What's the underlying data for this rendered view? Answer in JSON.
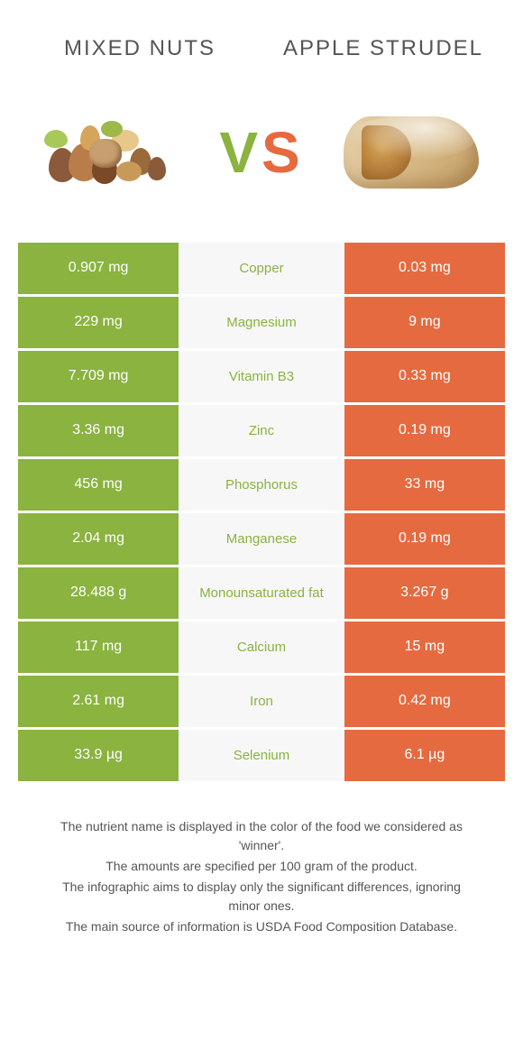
{
  "header": {
    "left_title": "Mixed nuts",
    "right_title": "Apple strudel",
    "vs_v": "V",
    "vs_s": "S"
  },
  "colors": {
    "left": "#8ab33f",
    "right": "#e66a3f",
    "mid_bg": "#f7f7f7",
    "text": "#555555"
  },
  "rows": [
    {
      "left": "0.907 mg",
      "label": "Copper",
      "right": "0.03 mg",
      "winner": "left"
    },
    {
      "left": "229 mg",
      "label": "Magnesium",
      "right": "9 mg",
      "winner": "left"
    },
    {
      "left": "7.709 mg",
      "label": "Vitamin B3",
      "right": "0.33 mg",
      "winner": "left"
    },
    {
      "left": "3.36 mg",
      "label": "Zinc",
      "right": "0.19 mg",
      "winner": "left"
    },
    {
      "left": "456 mg",
      "label": "Phosphorus",
      "right": "33 mg",
      "winner": "left"
    },
    {
      "left": "2.04 mg",
      "label": "Manganese",
      "right": "0.19 mg",
      "winner": "left"
    },
    {
      "left": "28.488 g",
      "label": "Monounsaturated fat",
      "right": "3.267 g",
      "winner": "left"
    },
    {
      "left": "117 mg",
      "label": "Calcium",
      "right": "15 mg",
      "winner": "left"
    },
    {
      "left": "2.61 mg",
      "label": "Iron",
      "right": "0.42 mg",
      "winner": "left"
    },
    {
      "left": "33.9 µg",
      "label": "Selenium",
      "right": "6.1 µg",
      "winner": "left"
    }
  ],
  "footer": {
    "line1": "The nutrient name is displayed in the color of the food we considered as 'winner'.",
    "line2": "The amounts are specified per 100 gram of the product.",
    "line3": "The infographic aims to display only the significant differences, ignoring minor ones.",
    "line4": "The main source of information is USDA Food Composition Database."
  }
}
